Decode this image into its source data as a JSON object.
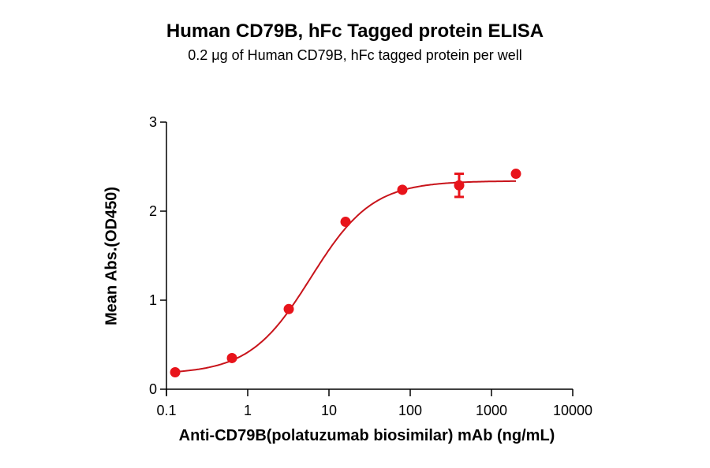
{
  "chart_data": {
    "type": "scatter",
    "title": "Human CD79B, hFc Tagged protein ELISA",
    "subtitle": "0.2 μg of Human CD79B, hFc tagged protein per well",
    "xlabel": "Anti-CD79B(polatuzumab biosimilar) mAb  (ng/mL)",
    "ylabel": "Mean Abs.(OD450)",
    "xscale": "log",
    "xlim": [
      0.1,
      10000
    ],
    "ylim": [
      0,
      3
    ],
    "xticks": [
      "0.1",
      "1",
      "10",
      "100",
      "1000",
      "10000"
    ],
    "yticks": [
      "0",
      "1",
      "2",
      "3"
    ],
    "grid": false,
    "series": [
      {
        "name": "Human CD79B, hFc",
        "color": "#e8141b",
        "fit": "4PL sigmoidal curve",
        "x": [
          0.128,
          0.64,
          3.2,
          16,
          80,
          400,
          2000
        ],
        "y": [
          0.19,
          0.35,
          0.9,
          1.88,
          2.24,
          2.29,
          2.42
        ],
        "error": [
          0,
          0,
          0,
          0,
          0,
          0.13,
          0
        ]
      }
    ]
  }
}
